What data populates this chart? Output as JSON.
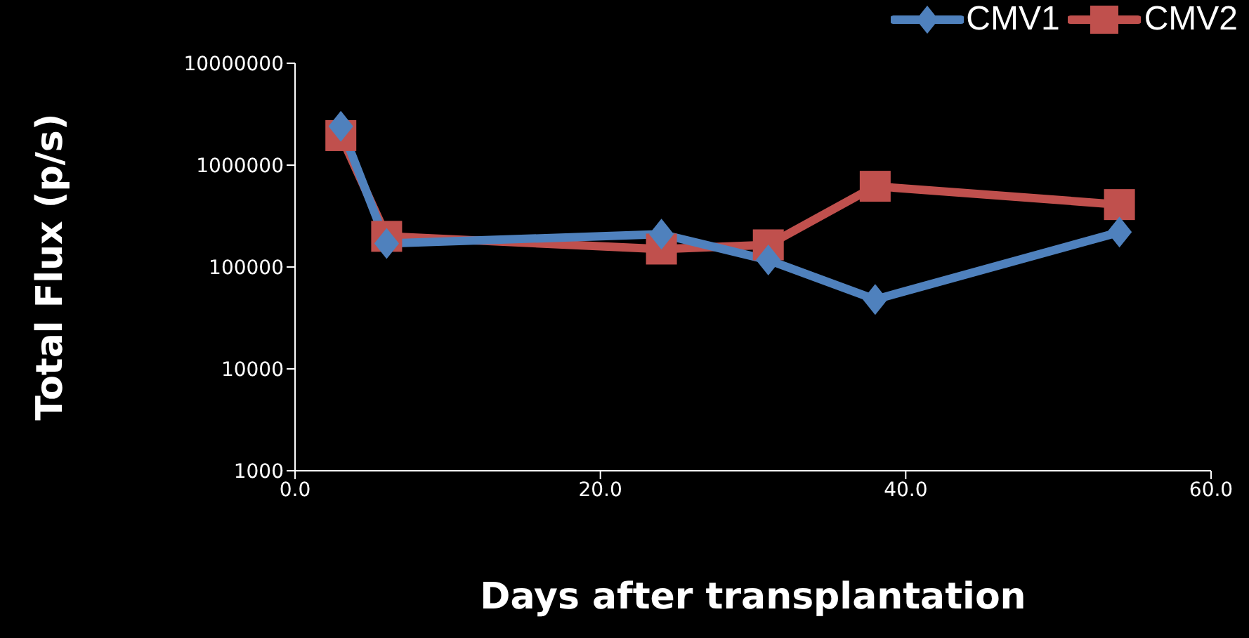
{
  "chart_data": {
    "type": "line",
    "xlabel": "Days after transplantation",
    "ylabel": "Total Flux (p/s)",
    "log": "y",
    "xlim": [
      0,
      60
    ],
    "xticks": [
      {
        "value": 0,
        "label": "0.0"
      },
      {
        "value": 20,
        "label": "20.0"
      },
      {
        "value": 40,
        "label": "40.0"
      },
      {
        "value": 60,
        "label": "60.0"
      }
    ],
    "ylim": [
      1000,
      10000000
    ],
    "yticks": [
      1000,
      10000,
      100000,
      1000000,
      10000000
    ],
    "x": [
      3,
      6,
      24,
      31,
      38,
      54
    ],
    "grid": false,
    "legend": "top right",
    "line_style": "solid",
    "series": [
      {
        "name": "CMV1",
        "color": "#4f81bd",
        "marker": "diamond",
        "values": [
          2400000,
          170000,
          210000,
          117000,
          48000,
          220000
        ]
      },
      {
        "name": "CMV2",
        "color": "#c0504d",
        "marker": "square",
        "values": [
          1950000,
          200000,
          150000,
          165000,
          620000,
          410000
        ]
      }
    ]
  }
}
